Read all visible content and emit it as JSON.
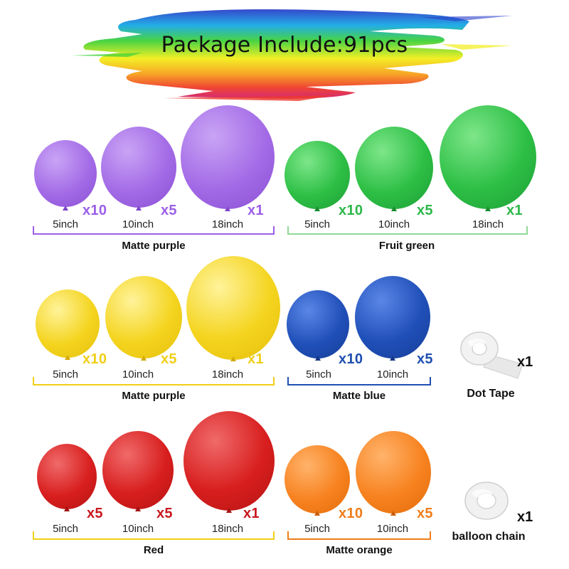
{
  "title": "Package Include:91pcs",
  "groups": [
    {
      "name": "Matte purple",
      "color": "#a36be6",
      "label_color": "#9b5ee8",
      "items": [
        {
          "size": "5inch",
          "qty": "x10"
        },
        {
          "size": "10inch",
          "qty": "x5"
        },
        {
          "size": "18inch",
          "qty": "x1"
        }
      ]
    },
    {
      "name": "Fruit green",
      "color": "#2dbf45",
      "label_color": "#2db84a",
      "items": [
        {
          "size": "5inch",
          "qty": "x10"
        },
        {
          "size": "10inch",
          "qty": "x5"
        },
        {
          "size": "18inch",
          "qty": "x1"
        }
      ]
    },
    {
      "name": "Matte purple",
      "color": "#f4d41e",
      "label_color": "#f0cf17",
      "items": [
        {
          "size": "5inch",
          "qty": "x10"
        },
        {
          "size": "10inch",
          "qty": "x5"
        },
        {
          "size": "18inch",
          "qty": "x1"
        }
      ]
    },
    {
      "name": "Matte blue",
      "color": "#1f4fb8",
      "label_color": "#1f4fb0",
      "items": [
        {
          "size": "5inch",
          "qty": "x10"
        },
        {
          "size": "10inch",
          "qty": "x5"
        }
      ]
    },
    {
      "name": "Red",
      "color": "#d81e1e",
      "label_color": "#c8181e",
      "items": [
        {
          "size": "5inch",
          "qty": "x5"
        },
        {
          "size": "10inch",
          "qty": "x5"
        },
        {
          "size": "18inch",
          "qty": "x1"
        }
      ]
    },
    {
      "name": "Matte orange",
      "color": "#f7821f",
      "label_color": "#ef7d1a",
      "items": [
        {
          "size": "5inch",
          "qty": "x10"
        },
        {
          "size": "10inch",
          "qty": "x5"
        }
      ]
    }
  ],
  "accessories": [
    {
      "name": "Dot Tape",
      "qty": "x1",
      "icon": "dot-tape-roll-icon"
    },
    {
      "name": "balloon chain",
      "qty": "x1",
      "icon": "balloon-chain-roll-icon"
    }
  ]
}
